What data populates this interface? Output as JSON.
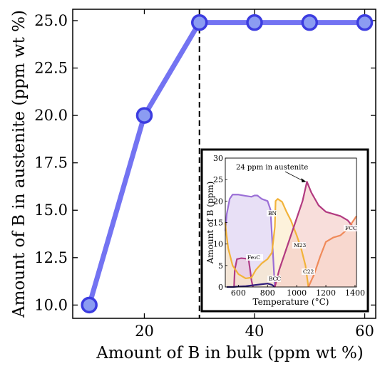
{
  "chart_data": [
    {
      "type": "line",
      "xlabel": "Amount of B in bulk (ppm wt %)",
      "ylabel": "Amount of B in austenite (ppm wt %)",
      "xlim": [
        7,
        62
      ],
      "ylim": [
        9.3,
        25.6
      ],
      "xticks": [
        20,
        40,
        60
      ],
      "yticks": [
        10.0,
        12.5,
        15.0,
        17.5,
        20.0,
        22.5,
        25.0
      ],
      "ytick_labels": [
        "10.0",
        "12.5",
        "15.0",
        "17.5",
        "20.0",
        "22.5",
        "25.0"
      ],
      "series": [
        {
          "x": [
            10,
            20,
            30,
            40,
            50,
            60
          ],
          "y": [
            10.0,
            20.0,
            24.9,
            24.9,
            24.9,
            24.9
          ],
          "color": "#5a5af0"
        }
      ],
      "vline": {
        "x": 30,
        "style": "dashed"
      },
      "grid": false
    },
    {
      "type": "area",
      "inset": true,
      "xlabel": "Temperature (°C)",
      "ylabel": "Amount of B (ppm)",
      "xlim": [
        510,
        1410
      ],
      "ylim": [
        0,
        30
      ],
      "xticks": [
        600,
        800,
        1000,
        1200,
        1400
      ],
      "yticks": [
        0,
        5,
        10,
        15,
        20,
        25,
        30
      ],
      "series": [
        {
          "name": "BN",
          "color": "#9b6fd6",
          "fill": "#d8cbf0",
          "x": [
            510,
            520,
            540,
            560,
            600,
            650,
            690,
            710,
            730,
            760,
            800,
            820,
            830,
            840,
            848,
            850
          ],
          "y": [
            13,
            17,
            20.5,
            21.5,
            21.5,
            21.2,
            21.0,
            21.3,
            21.3,
            20.5,
            20,
            18,
            12,
            6,
            1,
            0
          ]
        },
        {
          "name": "Fe3C",
          "color": "#b03d86",
          "fill": "#e9c4dc",
          "x": [
            570,
            575,
            590,
            620,
            650,
            670,
            680,
            690,
            700
          ],
          "y": [
            0,
            4,
            6.5,
            6.7,
            6.6,
            6.4,
            4,
            1.5,
            0
          ]
        },
        {
          "name": "BCC",
          "color": "#2d1b7a",
          "fill": null,
          "x": [
            520,
            560,
            600,
            650,
            700,
            750,
            800,
            830,
            850
          ],
          "y": [
            0,
            0,
            0.1,
            0.2,
            0.4,
            0.6,
            0.8,
            0.5,
            0
          ]
        },
        {
          "name": "M23",
          "color": "#f2b33a",
          "fill": "#fbe9c3",
          "x": [
            510,
            515,
            530,
            560,
            600,
            650,
            690,
            720,
            760,
            800,
            830,
            850,
            855,
            870,
            900,
            930,
            960,
            1000,
            1030,
            1060,
            1080
          ],
          "y": [
            15,
            13,
            9,
            5,
            3,
            2,
            2.2,
            4,
            5.5,
            6.5,
            8,
            14,
            20,
            20.5,
            19.8,
            17.5,
            15.5,
            12,
            9,
            5,
            0
          ]
        },
        {
          "name": "C22",
          "color": "#b23a80",
          "fill": "#f4c8c3",
          "x": [
            850,
            880,
            920,
            960,
            1000,
            1040,
            1070,
            1100,
            1150,
            1200,
            1250,
            1300,
            1350,
            1410
          ],
          "y": [
            0,
            4,
            8,
            12,
            16,
            20,
            24.5,
            22,
            19,
            17.5,
            17,
            16.5,
            15.5,
            13
          ]
        },
        {
          "name": "FCC",
          "color": "#f08a5a",
          "fill": "#f8d4c6",
          "x": [
            1080,
            1120,
            1160,
            1200,
            1250,
            1300,
            1350,
            1400,
            1410
          ],
          "y": [
            0,
            3,
            7,
            10.5,
            11.5,
            12,
            13.5,
            16,
            16.5
          ]
        }
      ],
      "annotations": [
        {
          "text": "24 ppm in austenite",
          "x": 1065,
          "y": 24.5
        },
        {
          "text": "BN"
        },
        {
          "text": "Fe₃C"
        },
        {
          "text": "BCC"
        },
        {
          "text": "M23"
        },
        {
          "text": "C22"
        },
        {
          "text": "FCC"
        }
      ]
    }
  ]
}
